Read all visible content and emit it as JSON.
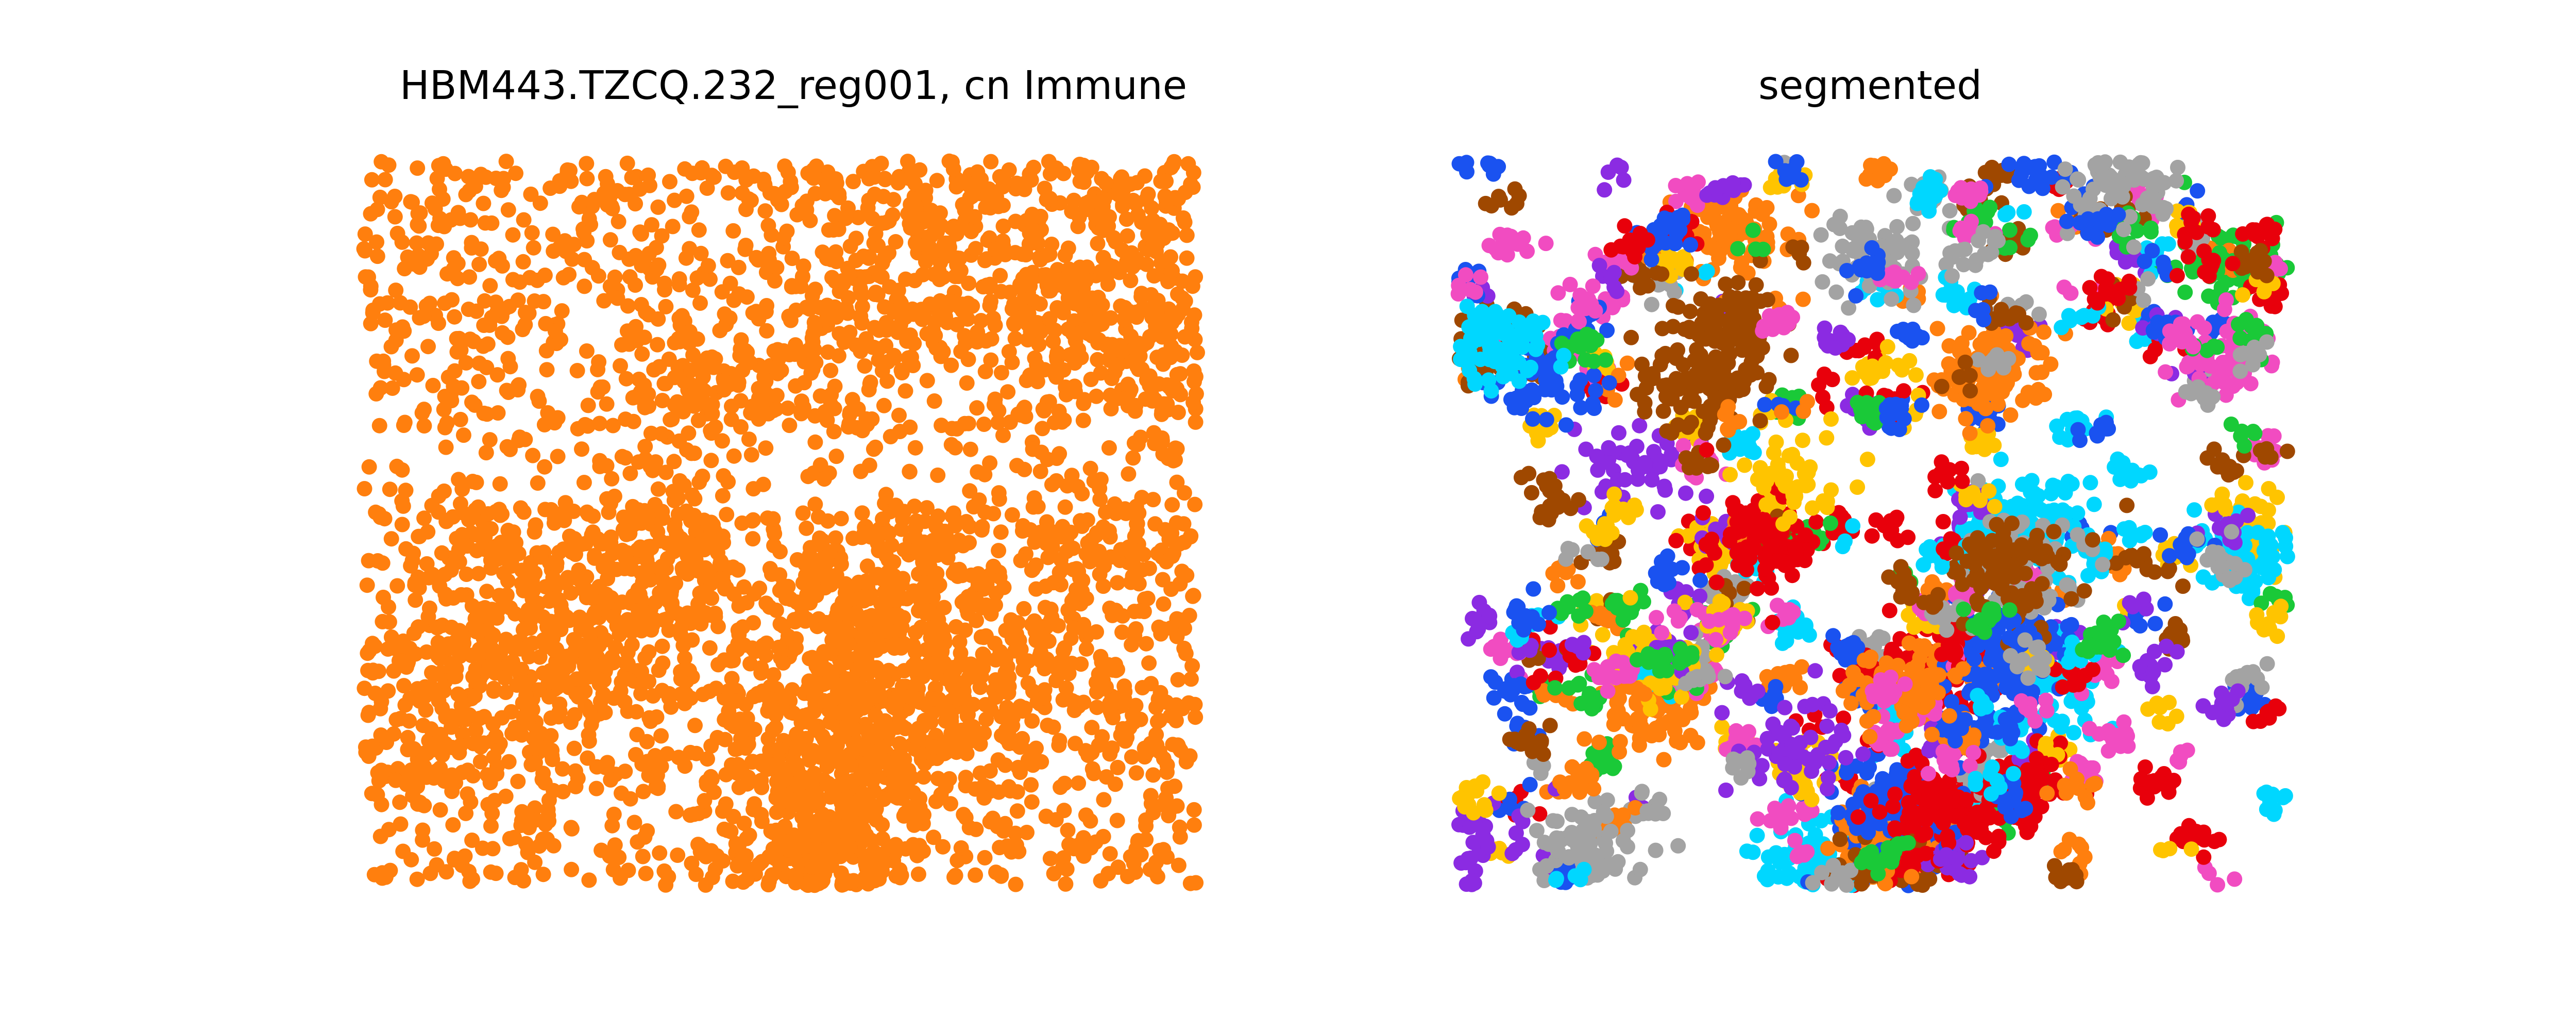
{
  "chart_data": [
    {
      "type": "scatter",
      "title": "HBM443.TZCQ.232_reg001, cn Immune",
      "axes_visible": false,
      "series": [
        {
          "color": "#ff7f0e",
          "n_points": 4500
        }
      ]
    },
    {
      "type": "scatter",
      "title": "segmented",
      "axes_visible": false,
      "colors": [
        "#ff7f0e",
        "#1a52f0",
        "#e8000b",
        "#1ac938",
        "#8b2be2",
        "#9f4800",
        "#f14cc1",
        "#a3a3a3",
        "#ffc400",
        "#00d7ff"
      ],
      "n_clusters": 420
    }
  ]
}
